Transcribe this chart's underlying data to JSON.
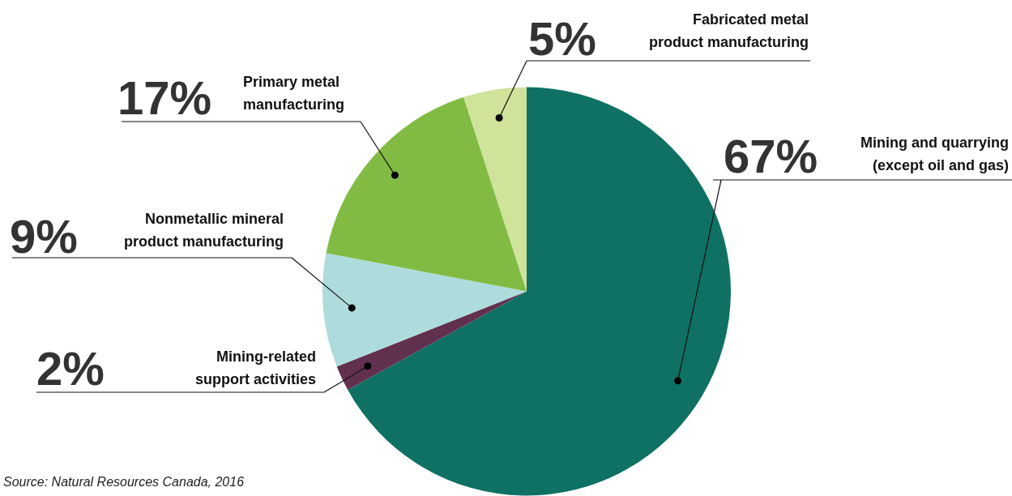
{
  "chart_data": {
    "type": "pie",
    "categories": [
      "Mining and quarrying\n(except oil and gas)",
      "Mining-related\nsupport activities",
      "Nonmetallic mineral\nproduct manufacturing",
      "Primary metal\nmanufacturing",
      "Fabricated metal\nproduct manufacturing"
    ],
    "values": [
      67,
      2,
      9,
      17,
      5
    ],
    "colors": [
      "#0e7163",
      "#62304f",
      "#aedbdb",
      "#82bb43",
      "#cfe39b"
    ],
    "value_labels": [
      "67%",
      "2%",
      "9%",
      "17%",
      "5%"
    ],
    "legend": false,
    "annotations": [
      "Source: Natural Resources Canada, 2016"
    ]
  }
}
